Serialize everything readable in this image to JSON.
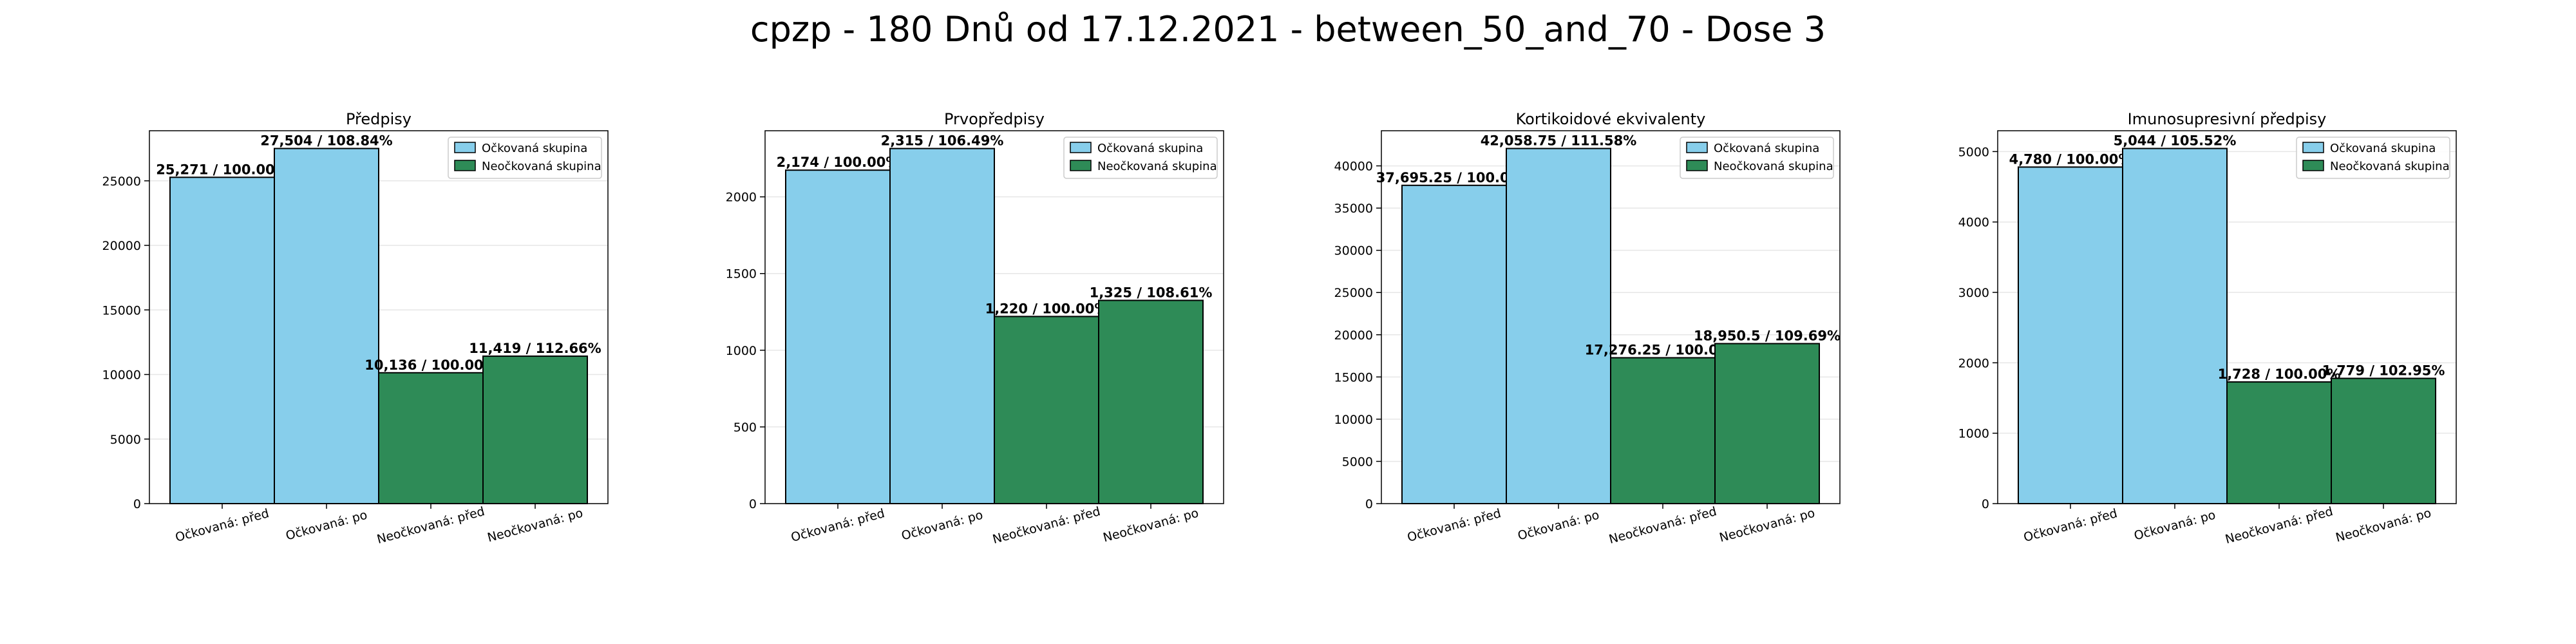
{
  "figure_title": "cpzp - 180 Dnů od 17.12.2021 - between_50_and_70 - Dose 3",
  "colors": {
    "vaccinated": "#87ceeb",
    "unvaccinated": "#2e8b57",
    "edge": "#000000",
    "grid": "#e6e6e6"
  },
  "chart_data": [
    {
      "type": "bar",
      "title": "Předpisy",
      "categories": [
        "Očkovaná: před",
        "Očkovaná: po",
        "Neočkovaná: před",
        "Neočkovaná: po"
      ],
      "values": [
        25271,
        27504,
        10136,
        11419
      ],
      "bar_labels": [
        "25,271 / 100.00%",
        "27,504 / 108.84%",
        "10,136 / 100.00%",
        "11,419 / 112.66%"
      ],
      "groups": [
        "vaccinated",
        "vaccinated",
        "unvaccinated",
        "unvaccinated"
      ],
      "legend": [
        "Očkovaná skupina",
        "Neočkovaná skupina"
      ],
      "legend_position": "top-right",
      "ylim": [
        0,
        28879
      ],
      "yticks": [
        0,
        5000,
        10000,
        15000,
        20000,
        25000
      ],
      "ytick_labels": [
        "0",
        "5000",
        "10000",
        "15000",
        "20000",
        "25000"
      ],
      "grid": true
    },
    {
      "type": "bar",
      "title": "Prvopředpisy",
      "categories": [
        "Očkovaná: před",
        "Očkovaná: po",
        "Neočkovaná: před",
        "Neočkovaná: po"
      ],
      "values": [
        2174,
        2315,
        1220,
        1325
      ],
      "bar_labels": [
        "2,174 / 100.00%",
        "2,315 / 106.49%",
        "1,220 / 100.00%",
        "1,325 / 108.61%"
      ],
      "groups": [
        "vaccinated",
        "vaccinated",
        "unvaccinated",
        "unvaccinated"
      ],
      "legend": [
        "Očkovaná skupina",
        "Neočkovaná skupina"
      ],
      "legend_position": "top-right",
      "ylim": [
        0,
        2431
      ],
      "yticks": [
        0,
        500,
        1000,
        1500,
        2000
      ],
      "ytick_labels": [
        "0",
        "500",
        "1000",
        "1500",
        "2000"
      ],
      "grid": true
    },
    {
      "type": "bar",
      "title": "Kortikoidové ekvivalenty",
      "categories": [
        "Očkovaná: před",
        "Očkovaná: po",
        "Neočkovaná: před",
        "Neočkovaná: po"
      ],
      "values": [
        37695.25,
        42058.75,
        17276.25,
        18950.5
      ],
      "bar_labels": [
        "37,695.25 / 100.00%",
        "42,058.75 / 111.58%",
        "17,276.25 / 100.00%",
        "18,950.5 / 109.69%"
      ],
      "groups": [
        "vaccinated",
        "vaccinated",
        "unvaccinated",
        "unvaccinated"
      ],
      "legend": [
        "Očkovaná skupina",
        "Neočkovaná skupina"
      ],
      "legend_position": "top-right",
      "ylim": [
        0,
        44162
      ],
      "yticks": [
        0,
        5000,
        10000,
        15000,
        20000,
        25000,
        30000,
        35000,
        40000
      ],
      "ytick_labels": [
        "0",
        "5000",
        "10000",
        "15000",
        "20000",
        "25000",
        "30000",
        "35000",
        "40000"
      ],
      "grid": true
    },
    {
      "type": "bar",
      "title": "Imunosupresivní předpisy",
      "categories": [
        "Očkovaná: před",
        "Očkovaná: po",
        "Neočkovaná: před",
        "Neočkovaná: po"
      ],
      "values": [
        4780,
        5044,
        1728,
        1779
      ],
      "bar_labels": [
        "4,780 / 100.00%",
        "5,044 / 105.52%",
        "1,728 / 100.00%",
        "1,779 / 102.95%"
      ],
      "groups": [
        "vaccinated",
        "vaccinated",
        "unvaccinated",
        "unvaccinated"
      ],
      "legend": [
        "Očkovaná skupina",
        "Neočkovaná skupina"
      ],
      "legend_position": "top-right",
      "ylim": [
        0,
        5296
      ],
      "yticks": [
        0,
        1000,
        2000,
        3000,
        4000,
        5000
      ],
      "ytick_labels": [
        "0",
        "1000",
        "2000",
        "3000",
        "4000",
        "5000"
      ],
      "grid": true
    }
  ]
}
